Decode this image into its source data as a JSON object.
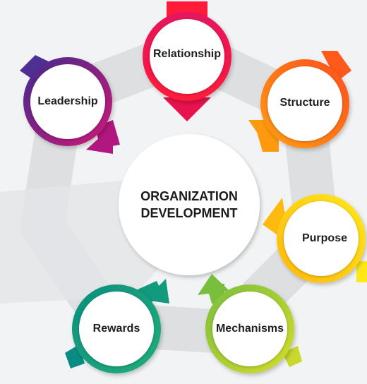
{
  "center": {
    "line1": "ORGANIZATION",
    "line2": "DEVELOPMENT"
  },
  "nodes": [
    {
      "id": "relationship",
      "label": "Relationship",
      "colors": [
        "#ff1c3a",
        "#d90f6c"
      ]
    },
    {
      "id": "structure",
      "label": "Structure",
      "colors": [
        "#ff5a1c",
        "#ff9a10"
      ]
    },
    {
      "id": "purpose",
      "label": "Purpose",
      "colors": [
        "#ffc20e",
        "#ffe81a"
      ]
    },
    {
      "id": "mechanisms",
      "label": "Mechanisms",
      "colors": [
        "#8dc63f",
        "#c5d92d"
      ]
    },
    {
      "id": "rewards",
      "label": "Rewards",
      "colors": [
        "#1aa37a",
        "#078a86"
      ]
    },
    {
      "id": "leadership",
      "label": "Leadership",
      "colors": [
        "#4e2f93",
        "#c2187a"
      ]
    }
  ]
}
